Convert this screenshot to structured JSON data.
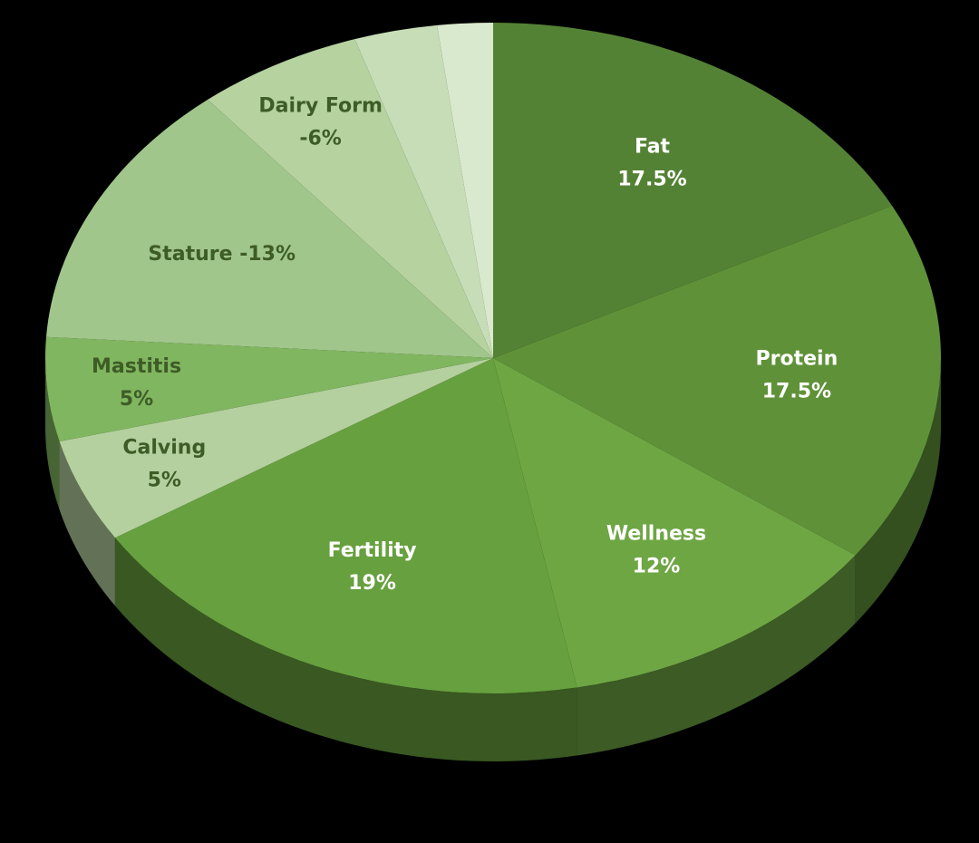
{
  "chart_data": {
    "type": "pie3d",
    "categories": [
      "Fat",
      "Protein",
      "Wellness",
      "Fertility",
      "Calving",
      "Mastitis",
      "Stature",
      "Dairy Form",
      null,
      null
    ],
    "values": [
      17.5,
      17.5,
      12,
      19,
      5,
      5,
      -13,
      -6,
      3,
      2
    ],
    "value_labels": [
      "17.5%",
      "17.5%",
      "12%",
      "19%",
      "5%",
      "5%",
      "-13%",
      "-6%",
      null,
      null
    ],
    "colors": [
      "#548235",
      "#5f9238",
      "#6ea644",
      "#67a03e",
      "#b4d09e",
      "#80b65f",
      "#a1c68b",
      "#b5d29f",
      "#c7ddb7",
      "#d9e9cd"
    ],
    "label_colors": [
      "#ffffff",
      "#ffffff",
      "#ffffff",
      "#ffffff",
      "#3d5c26",
      "#3d5c26",
      "#3d5c26",
      "#3d5c26",
      null,
      null
    ]
  }
}
